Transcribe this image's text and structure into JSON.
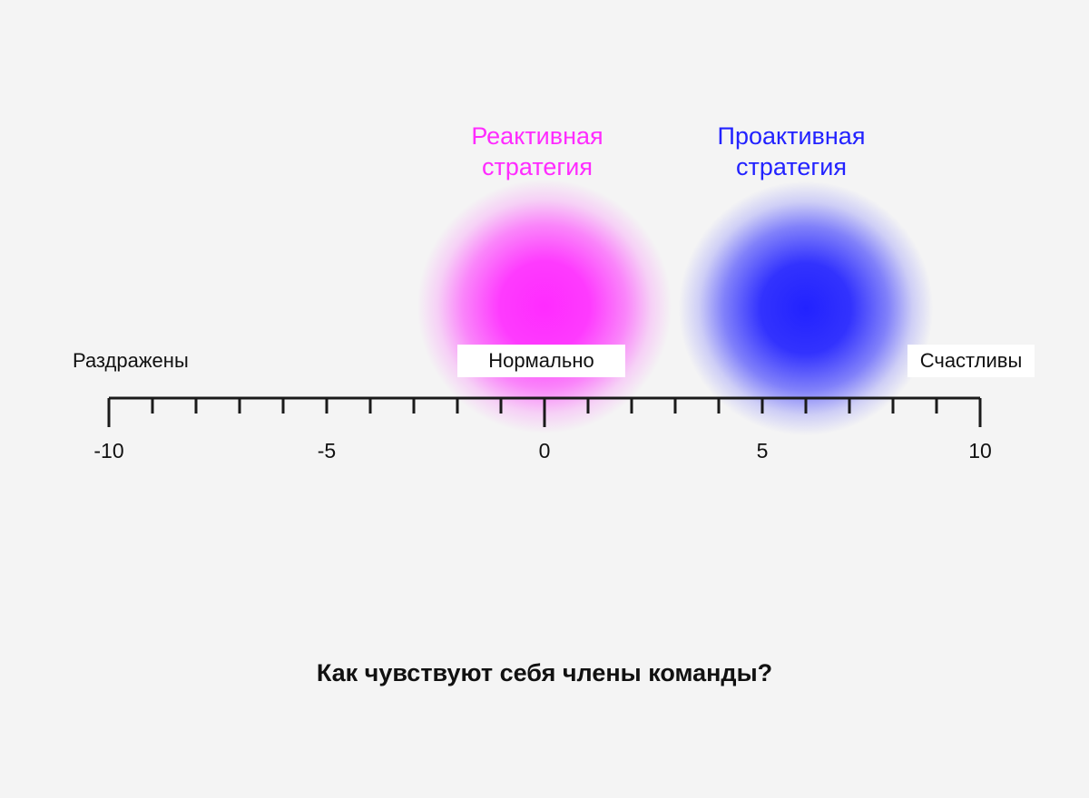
{
  "colors": {
    "background": "#f4f4f4",
    "reactive": "#ff2bff",
    "proactive": "#2222ff",
    "axis": "#1a1a1a"
  },
  "strategies": {
    "reactive": {
      "title_line1": "Реактивная",
      "title_line2": "стратегия",
      "value": 0
    },
    "proactive": {
      "title_line1": "Проактивная",
      "title_line2": "стратегия",
      "value": 6
    }
  },
  "scale": {
    "left_label": "Раздражены",
    "center_label": "Нормально",
    "right_label": "Счастливы",
    "min": -10,
    "max": 10,
    "minor_step": 1,
    "major_labels": [
      "-10",
      "-5",
      "0",
      "5",
      "10"
    ]
  },
  "question": "Как чувствуют себя члены команды?"
}
